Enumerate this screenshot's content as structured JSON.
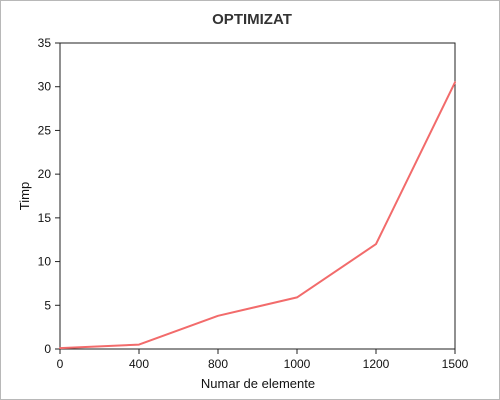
{
  "chart_data": {
    "type": "line",
    "title": "OPTIMIZAT",
    "xlabel": "Numar de elemente",
    "ylabel": "Timp",
    "categories": [
      "0",
      "400",
      "800",
      "1000",
      "1200",
      "1500"
    ],
    "yticks": [
      "0",
      "5",
      "10",
      "15",
      "20",
      "25",
      "30",
      "35"
    ],
    "ylim": [
      0,
      35
    ],
    "grid": false,
    "series": [
      {
        "values": [
          0.1,
          0.5,
          3.8,
          5.9,
          12,
          30.5
        ],
        "color": "#f26b6b"
      }
    ]
  }
}
